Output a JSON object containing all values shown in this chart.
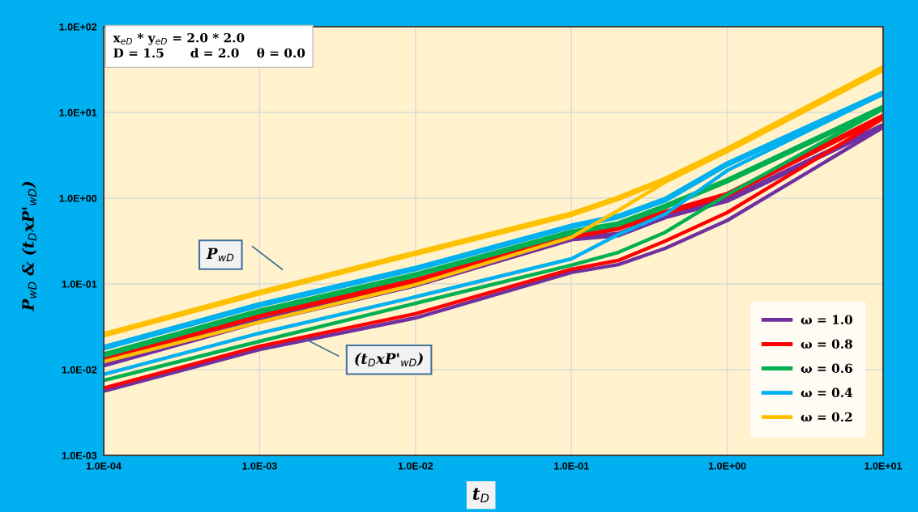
{
  "chart_data": {
    "type": "line",
    "xlabel": "t$_{D}$",
    "ylabel": "P$_{wD}$ & (t$_{D}$xP'$_{wD}$)",
    "log": "xy",
    "grid": true,
    "legend": "bottom right",
    "line_style": "solid",
    "marker": "none",
    "xlim": [
      0.0001,
      10
    ],
    "ylim": [
      0.001,
      100
    ],
    "xticks": [
      {
        "value": 0.0001,
        "label": "1.0E-04"
      },
      {
        "value": 0.001,
        "label": "1.0E-03"
      },
      {
        "value": 0.01,
        "label": "1.0E-02"
      },
      {
        "value": 0.1,
        "label": "1.0E-01"
      },
      {
        "value": 1,
        "label": "1.0E+00"
      },
      {
        "value": 10,
        "label": "1.0E+01"
      }
    ],
    "yticks": [
      {
        "value": 0.001,
        "label": "1.0E-03"
      },
      {
        "value": 0.01,
        "label": "1.0E-02"
      },
      {
        "value": 0.1,
        "label": "1.0E-01"
      },
      {
        "value": 1,
        "label": "1.0E+00"
      },
      {
        "value": 10,
        "label": "1.0E+01"
      },
      {
        "value": 100,
        "label": "1.0E+02"
      }
    ],
    "x": [
      0.0001,
      0.001,
      0.01,
      0.1,
      0.2,
      0.4,
      1,
      10
    ],
    "series": [
      {
        "name": "ω = 1.0",
        "color": "#7030a0",
        "values": [
          0.0114,
          0.037,
          0.098,
          0.337,
          0.376,
          0.61,
          0.95,
          7.0
        ]
      },
      {
        "name": "ω = 0.8",
        "color": "#ff0000",
        "values": [
          0.0132,
          0.0429,
          0.109,
          0.36,
          0.45,
          0.68,
          1.1,
          9.0
        ]
      },
      {
        "name": "ω = 0.6",
        "color": "#00b050",
        "values": [
          0.0148,
          0.048,
          0.127,
          0.4,
          0.5,
          0.8,
          1.6,
          11.4
        ]
      },
      {
        "name": "ω = 0.4",
        "color": "#00b0f0",
        "values": [
          0.018,
          0.057,
          0.151,
          0.47,
          0.61,
          0.96,
          2.5,
          16.8
        ]
      },
      {
        "name": "ω = 0.2",
        "color": "#ffc000",
        "values": [
          0.0255,
          0.079,
          0.228,
          0.65,
          1.0,
          1.65,
          3.7,
          33
        ]
      },
      {
        "color": "#7030a0",
        "values": [
          0.0056,
          0.0172,
          0.0401,
          0.136,
          0.168,
          0.26,
          0.55,
          6.7
        ]
      },
      {
        "color": "#ff0000",
        "values": [
          0.0061,
          0.0187,
          0.0448,
          0.148,
          0.188,
          0.316,
          0.68,
          8.5
        ]
      },
      {
        "color": "#00b050",
        "values": [
          0.0075,
          0.0214,
          0.0594,
          0.165,
          0.233,
          0.4,
          1.1,
          11
        ]
      },
      {
        "color": "#00b0f0",
        "values": [
          0.0088,
          0.0266,
          0.0706,
          0.196,
          0.376,
          0.65,
          2.1,
          16.5
        ]
      },
      {
        "color": "#ffc000",
        "values": [
          0.0124,
          0.036,
          0.098,
          0.35,
          0.72,
          1.54,
          3.5,
          31
        ]
      }
    ],
    "annotations": [
      "x$_{eD}$ * y$_{eD}$ = 2.0 * 2.0\nD = 1.5      d = 2.0    θ = 0.0",
      "P$_{wD}$",
      "(t$_{D}$xP'$_{wD}$)"
    ]
  }
}
